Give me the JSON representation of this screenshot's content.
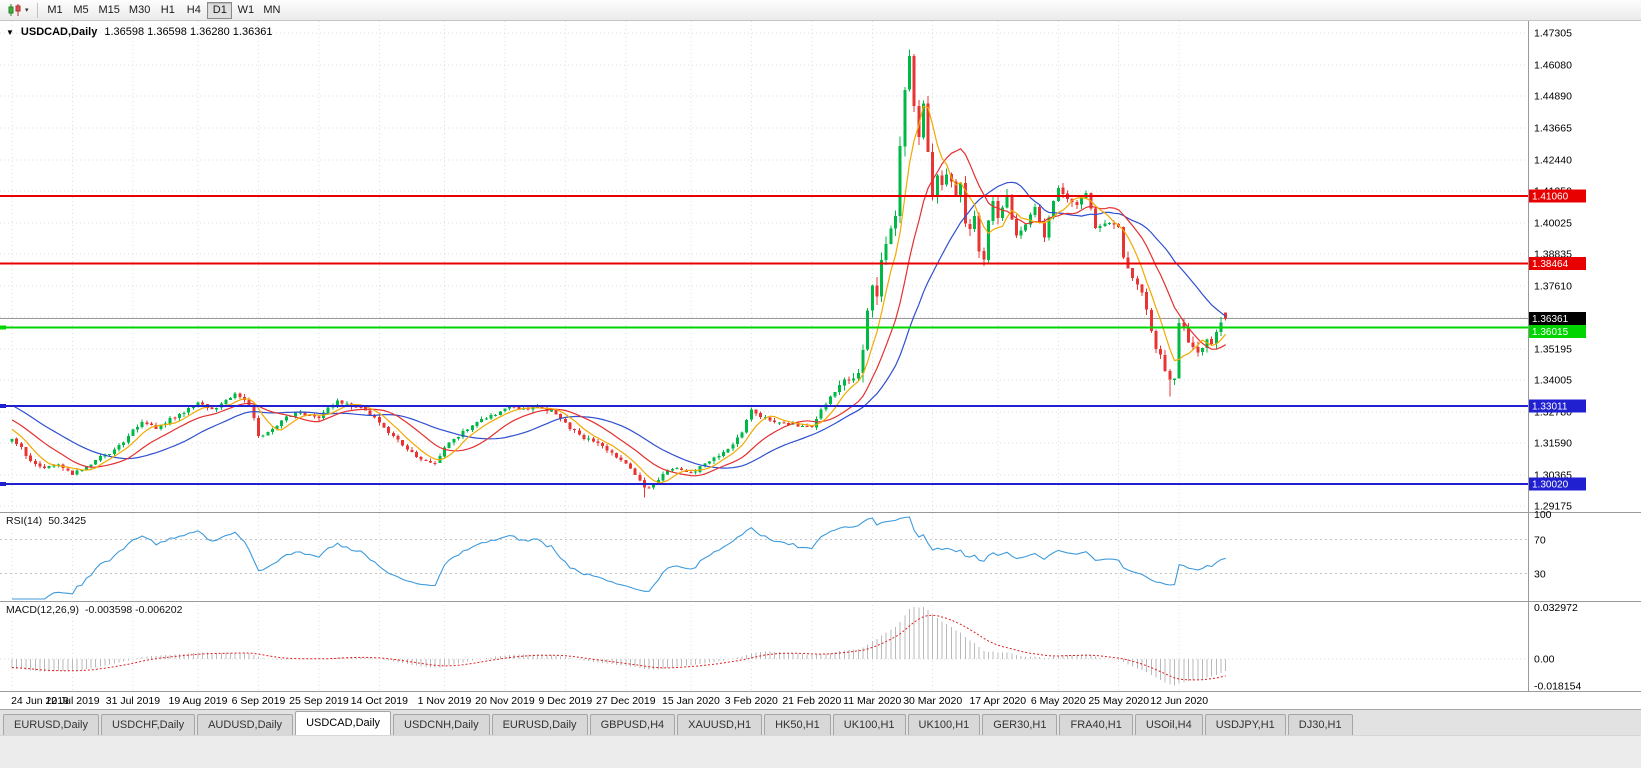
{
  "toolbar": {
    "timeframes": [
      "M1",
      "M5",
      "M15",
      "M30",
      "H1",
      "H4",
      "D1",
      "W1",
      "MN"
    ],
    "active_timeframe": "D1",
    "chart_type_icon": "candlestick-chart-icon"
  },
  "chart": {
    "title": "USDCAD,Daily",
    "ohlc_text": "1.36598 1.36598 1.36280 1.36361",
    "price_axis": [
      "1.47305",
      "1.46080",
      "1.44890",
      "1.43665",
      "1.42440",
      "1.41250",
      "1.40025",
      "1.38835",
      "1.37610",
      "1.36420",
      "1.35195",
      "1.34005",
      "1.32780",
      "1.31590",
      "1.30365",
      "1.29175"
    ],
    "levels": [
      {
        "price": "1.41060",
        "value": 1.4106,
        "color": "#e80000",
        "width": 2
      },
      {
        "price": "1.38464",
        "value": 1.38464,
        "color": "#e80000",
        "width": 2
      },
      {
        "price": "1.36015",
        "value": 1.36015,
        "color": "#00d500",
        "width": 2,
        "handle": true
      },
      {
        "price": "1.33011",
        "value": 1.33011,
        "color": "#2020d0",
        "width": 2,
        "handle": true
      },
      {
        "price": "1.30020",
        "value": 1.3002,
        "color": "#2020d0",
        "width": 2,
        "handle": true
      }
    ],
    "current_price": {
      "price": "1.36361",
      "value": 1.36361,
      "tag_bg": "#000000",
      "line_color": "#999999"
    }
  },
  "rsi": {
    "label": "RSI(14)",
    "value": "50.3425",
    "axis": [
      "100",
      "70",
      "30"
    ],
    "levels": [
      70,
      30
    ],
    "line_color": "#3f9bdc"
  },
  "macd": {
    "label": "MACD(12,26,9)",
    "values": "-0.003598 -0.006202",
    "axis": [
      "0.032972",
      "0.00",
      "-0.018154"
    ],
    "histogram_color": "#b9b9b9",
    "signal_color": "#e02020"
  },
  "tabs": [
    {
      "label": "EURUSD,Daily",
      "active": false
    },
    {
      "label": "USDCHF,Daily",
      "active": false
    },
    {
      "label": "AUDUSD,Daily",
      "active": false
    },
    {
      "label": "USDCAD,Daily",
      "active": true
    },
    {
      "label": "USDCNH,Daily",
      "active": false
    },
    {
      "label": "EURUSD,Daily",
      "active": false
    },
    {
      "label": "GBPUSD,H4",
      "active": false
    },
    {
      "label": "XAUUSD,H1",
      "active": false
    },
    {
      "label": "HK50,H1",
      "active": false
    },
    {
      "label": "UK100,H1",
      "active": false
    },
    {
      "label": "UK100,H1",
      "active": false
    },
    {
      "label": "GER30,H1",
      "active": false
    },
    {
      "label": "FRA40,H1",
      "active": false
    },
    {
      "label": "USOil,H4",
      "active": false
    },
    {
      "label": "USDJPY,H1",
      "active": false
    },
    {
      "label": "DJ30,H1",
      "active": false
    }
  ],
  "chart_data": {
    "type": "candlestick",
    "symbol": "USDCAD",
    "timeframe": "Daily",
    "quote": {
      "o": 1.36598,
      "h": 1.36598,
      "l": 1.3628,
      "c": 1.36361
    },
    "ylim": [
      1.29175,
      1.47305
    ],
    "n": 262,
    "date_ticks": [
      [
        0,
        "24 Jun 2019"
      ],
      [
        13,
        "12 Jul 2019"
      ],
      [
        26,
        "31 Jul 2019"
      ],
      [
        40,
        "19 Aug 2019"
      ],
      [
        53,
        "6 Sep 2019"
      ],
      [
        66,
        "25 Sep 2019"
      ],
      [
        79,
        "14 Oct 2019"
      ],
      [
        93,
        "1 Nov 2019"
      ],
      [
        106,
        "20 Nov 2019"
      ],
      [
        119,
        "9 Dec 2019"
      ],
      [
        132,
        "27 Dec 2019"
      ],
      [
        146,
        "15 Jan 2020"
      ],
      [
        159,
        "3 Feb 2020"
      ],
      [
        172,
        "21 Feb 2020"
      ],
      [
        185,
        "11 Mar 2020"
      ],
      [
        198,
        "30 Mar 2020"
      ],
      [
        212,
        "17 Apr 2020"
      ],
      [
        225,
        "6 May 2020"
      ],
      [
        238,
        "25 May 2020"
      ],
      [
        251,
        "12 Jun 2020"
      ]
    ],
    "anchors": [
      [
        0,
        1.3175
      ],
      [
        2,
        1.314
      ],
      [
        4,
        1.309
      ],
      [
        7,
        1.306
      ],
      [
        10,
        1.308
      ],
      [
        13,
        1.304
      ],
      [
        15,
        1.3055
      ],
      [
        18,
        1.3095
      ],
      [
        21,
        1.312
      ],
      [
        24,
        1.316
      ],
      [
        26,
        1.321
      ],
      [
        28,
        1.3235
      ],
      [
        31,
        1.3215
      ],
      [
        34,
        1.325
      ],
      [
        37,
        1.328
      ],
      [
        40,
        1.3315
      ],
      [
        43,
        1.3285
      ],
      [
        46,
        1.332
      ],
      [
        48,
        1.335
      ],
      [
        50,
        1.333
      ],
      [
        52,
        1.326
      ],
      [
        53,
        1.3185
      ],
      [
        55,
        1.32
      ],
      [
        58,
        1.3245
      ],
      [
        61,
        1.3275
      ],
      [
        64,
        1.326
      ],
      [
        66,
        1.325
      ],
      [
        68,
        1.329
      ],
      [
        70,
        1.332
      ],
      [
        73,
        1.33
      ],
      [
        76,
        1.329
      ],
      [
        79,
        1.3235
      ],
      [
        82,
        1.3185
      ],
      [
        85,
        1.3135
      ],
      [
        88,
        1.3095
      ],
      [
        91,
        1.3085
      ],
      [
        93,
        1.3145
      ],
      [
        96,
        1.3185
      ],
      [
        99,
        1.323
      ],
      [
        102,
        1.3255
      ],
      [
        105,
        1.328
      ],
      [
        107,
        1.33
      ],
      [
        110,
        1.3285
      ],
      [
        113,
        1.33
      ],
      [
        116,
        1.328
      ],
      [
        119,
        1.3235
      ],
      [
        122,
        1.3185
      ],
      [
        125,
        1.3165
      ],
      [
        128,
        1.3135
      ],
      [
        130,
        1.3105
      ],
      [
        132,
        1.3085
      ],
      [
        134,
        1.3035
      ],
      [
        136,
        1.2985
      ],
      [
        138,
        1.3
      ],
      [
        140,
        1.3045
      ],
      [
        143,
        1.3065
      ],
      [
        146,
        1.3045
      ],
      [
        149,
        1.3075
      ],
      [
        152,
        1.3115
      ],
      [
        155,
        1.3155
      ],
      [
        157,
        1.3205
      ],
      [
        159,
        1.329
      ],
      [
        161,
        1.3265
      ],
      [
        164,
        1.3245
      ],
      [
        167,
        1.3235
      ],
      [
        170,
        1.3225
      ],
      [
        172,
        1.322
      ],
      [
        174,
        1.3285
      ],
      [
        176,
        1.3335
      ],
      [
        178,
        1.3385
      ],
      [
        180,
        1.3405
      ],
      [
        182,
        1.343
      ],
      [
        183,
        1.353
      ],
      [
        184,
        1.366
      ],
      [
        185,
        1.3755
      ],
      [
        186,
        1.3715
      ],
      [
        187,
        1.3865
      ],
      [
        188,
        1.3925
      ],
      [
        189,
        1.3985
      ],
      [
        190,
        1.4045
      ],
      [
        191,
        1.4285
      ],
      [
        192,
        1.4515
      ],
      [
        193,
        1.462
      ],
      [
        194,
        1.4465
      ],
      [
        195,
        1.435
      ],
      [
        196,
        1.444
      ],
      [
        197,
        1.4285
      ],
      [
        198,
        1.4095
      ],
      [
        199,
        1.4175
      ],
      [
        200,
        1.4135
      ],
      [
        201,
        1.4205
      ],
      [
        202,
        1.4175
      ],
      [
        203,
        1.4115
      ],
      [
        204,
        1.416
      ],
      [
        205,
        1.4005
      ],
      [
        206,
        1.3985
      ],
      [
        207,
        1.4035
      ],
      [
        208,
        1.3905
      ],
      [
        209,
        1.3875
      ],
      [
        210,
        1.4015
      ],
      [
        211,
        1.4085
      ],
      [
        212,
        1.4005
      ],
      [
        214,
        1.409
      ],
      [
        216,
        1.3955
      ],
      [
        218,
        1.3995
      ],
      [
        220,
        1.407
      ],
      [
        222,
        1.3945
      ],
      [
        224,
        1.4085
      ],
      [
        225,
        1.414
      ],
      [
        227,
        1.4105
      ],
      [
        229,
        1.4065
      ],
      [
        231,
        1.411
      ],
      [
        233,
        1.3985
      ],
      [
        235,
        1.4005
      ],
      [
        238,
        1.398
      ],
      [
        239,
        1.388
      ],
      [
        241,
        1.378
      ],
      [
        243,
        1.3745
      ],
      [
        245,
        1.358
      ],
      [
        246,
        1.352
      ],
      [
        247,
        1.35
      ],
      [
        248,
        1.3425
      ],
      [
        249,
        1.339
      ],
      [
        250,
        1.3415
      ],
      [
        251,
        1.362
      ],
      [
        252,
        1.36
      ],
      [
        253,
        1.3555
      ],
      [
        254,
        1.3515
      ],
      [
        255,
        1.3495
      ],
      [
        256,
        1.353
      ],
      [
        257,
        1.356
      ],
      [
        258,
        1.3545
      ],
      [
        259,
        1.358
      ],
      [
        260,
        1.361
      ],
      [
        261,
        1.36361
      ]
    ],
    "volatility_zones": [
      [
        0,
        178,
        0.0016
      ],
      [
        178,
        183,
        0.003
      ],
      [
        183,
        200,
        0.0055
      ],
      [
        200,
        216,
        0.0042
      ],
      [
        216,
        240,
        0.0026
      ],
      [
        240,
        262,
        0.0034
      ]
    ],
    "extremes": [
      {
        "i": 193,
        "high": 1.4668
      },
      {
        "i": 136,
        "low": 1.295
      },
      {
        "i": 249,
        "low": 1.3338
      }
    ],
    "colors": {
      "bull": "#00b845",
      "bear": "#e93434"
    },
    "moving_averages": [
      {
        "period": 6,
        "color": "#f2a900"
      },
      {
        "period": 14,
        "color": "#e43030"
      },
      {
        "period": 26,
        "color": "#2f4fd0"
      }
    ]
  }
}
